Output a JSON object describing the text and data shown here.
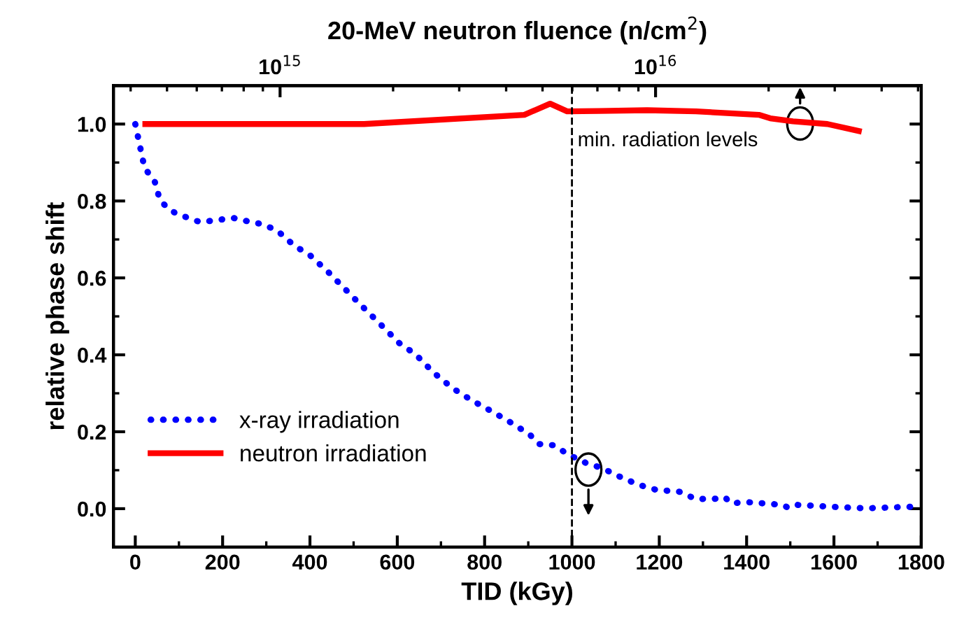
{
  "chart_data": {
    "type": "line",
    "xlabel": "TID (kGy)",
    "ylabel": "relative phase shift",
    "x2label": "20-MeV neutron fluence (n/cm$^{2}$)",
    "xlim": [
      -50,
      1800
    ],
    "xticks": [
      0,
      200,
      400,
      600,
      800,
      1000,
      1200,
      1400,
      1600,
      1800
    ],
    "ylim": [
      -0.1,
      1.1
    ],
    "yticks": [
      {
        "value": 0,
        "label": "0.0"
      },
      {
        "value": 0.2,
        "label": "0.2"
      },
      {
        "value": 0.4,
        "label": "0.4"
      },
      {
        "value": 0.6,
        "label": "0.6"
      },
      {
        "value": 0.8,
        "label": "0.8"
      },
      {
        "value": 1,
        "label": "1.0"
      }
    ],
    "x2lim": [
      360000000000000.0,
      5.1e+16
    ],
    "x2ticks": [
      {
        "value": 1000000000000000.0,
        "label": "10$^{15}$"
      },
      {
        "value": 1e+16,
        "label": "10$^{16}$"
      }
    ],
    "log": "x2",
    "legend": "bottom left",
    "grid": false,
    "series": [
      {
        "name": "x-ray irradiation",
        "color": "#0000ff",
        "line_style": "dotted",
        "x": [
          0,
          21,
          45,
          56,
          70,
          91,
          128,
          149,
          192,
          224,
          262,
          294,
          326,
          363,
          401,
          444,
          476,
          518,
          561,
          604,
          642,
          684,
          727,
          770,
          818,
          866,
          904,
          925,
          957,
          995,
          1032,
          1070,
          1110,
          1153,
          1193,
          1246,
          1284,
          1337,
          1350,
          1364,
          1401,
          1482,
          1496,
          1514,
          1594,
          1674,
          1776
        ],
        "values": [
          1.0,
          0.887,
          0.849,
          0.804,
          0.786,
          0.769,
          0.753,
          0.745,
          0.751,
          0.756,
          0.746,
          0.739,
          0.722,
          0.685,
          0.658,
          0.613,
          0.576,
          0.528,
          0.48,
          0.431,
          0.401,
          0.353,
          0.313,
          0.282,
          0.252,
          0.22,
          0.192,
          0.168,
          0.165,
          0.139,
          0.119,
          0.105,
          0.083,
          0.062,
          0.049,
          0.044,
          0.025,
          0.026,
          0.03,
          0.014,
          0.017,
          0.01,
          0.002,
          0.01,
          0.005,
          0.001,
          0.005
        ]
      },
      {
        "name": "neutron irradiation",
        "color": "#ff0000",
        "line_style": "solid",
        "x": [
          23,
          524,
          891,
          950,
          989,
          1061,
          1172,
          1284,
          1428,
          1454,
          1506,
          1585,
          1657
        ],
        "values": [
          1.0,
          1.0,
          1.024,
          1.053,
          1.033,
          1.034,
          1.036,
          1.033,
          1.024,
          1.015,
          1.007,
          1.0,
          0.982
        ]
      }
    ],
    "ref_lines": [
      {
        "axis": "x",
        "value": 1000,
        "label": "min. radiation levels",
        "color": "#000000",
        "line_style": "dashed"
      }
    ]
  }
}
